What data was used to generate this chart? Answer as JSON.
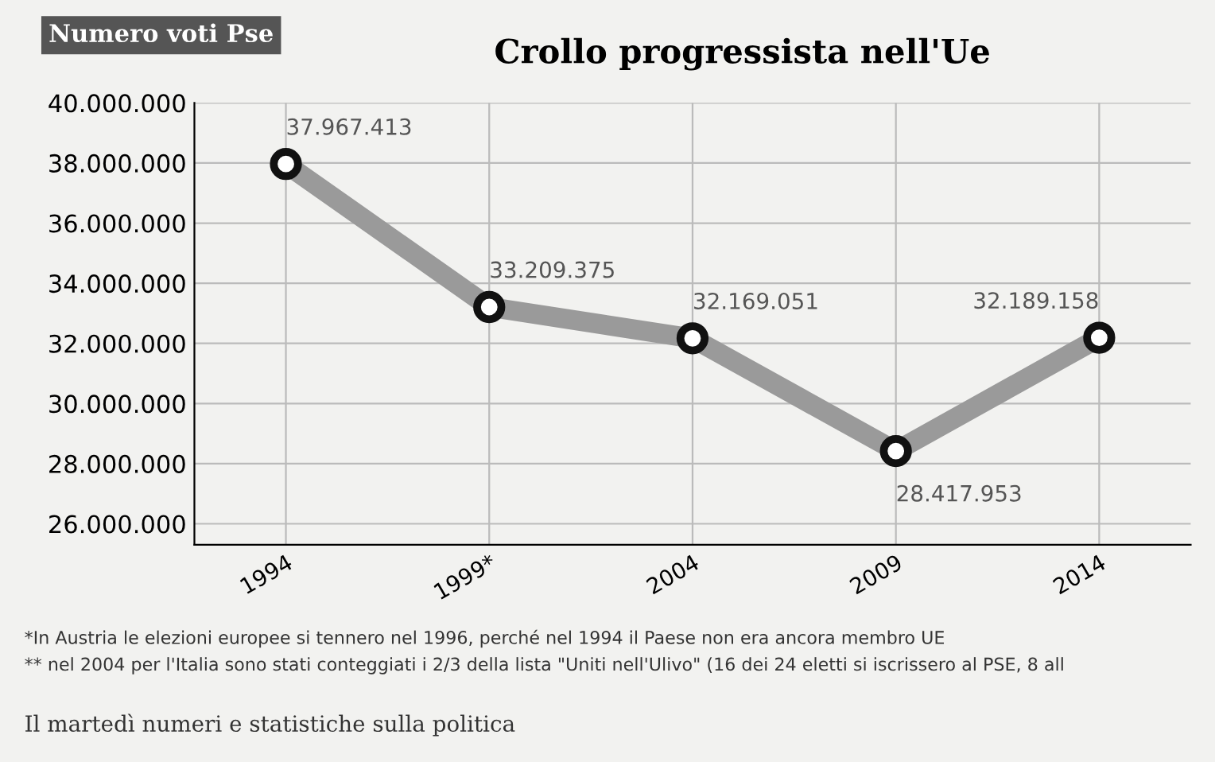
{
  "chart_data": {
    "type": "line",
    "title": "Crollo progressista nell'Ue",
    "ylabel": "Numero voti Pse",
    "categories": [
      "1994",
      "1999*",
      "2004",
      "2009",
      "2014"
    ],
    "series": [
      {
        "color": "#9a9a9a",
        "values": [
          37967413,
          33209375,
          32169051,
          28417953,
          32189158
        ],
        "value_labels": [
          "37.967.413",
          "33.209.375",
          "32.169.051",
          "28.417.953",
          "32.189.158"
        ]
      }
    ],
    "ylim": [
      25300000,
      40000000
    ],
    "yticks": [
      {
        "value": 26000000,
        "label": "26.000.000"
      },
      {
        "value": 28000000,
        "label": "28.000.000"
      },
      {
        "value": 30000000,
        "label": "30.000.000"
      },
      {
        "value": 32000000,
        "label": "32.000.000"
      },
      {
        "value": 34000000,
        "label": "34.000.000"
      },
      {
        "value": 36000000,
        "label": "36.000.000"
      },
      {
        "value": 38000000,
        "label": "38.000.000"
      },
      {
        "value": 40000000,
        "label": "40.000.000"
      }
    ],
    "grid": true,
    "marker": "circle",
    "line_style": "solid",
    "annotations": [
      "*In Austria le elezioni europee si tennero nel 1996, perché nel 1994 il Paese non era ancora membro UE",
      "** nel 2004 per l'Italia sono stati conteggiati i 2/3 della lista \"Uniti nell'Ulivo\" (16 dei 24 eletti si iscrissero al PSE, 8 all",
      "Il martedì numeri e statistiche sulla politica"
    ]
  }
}
